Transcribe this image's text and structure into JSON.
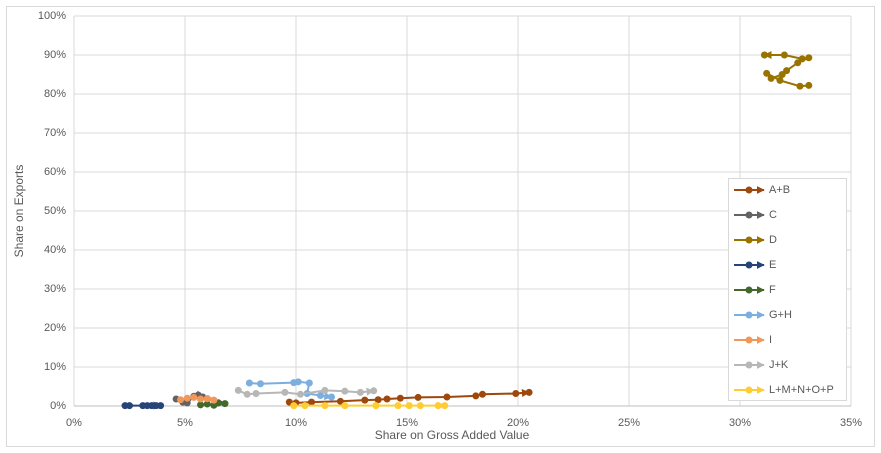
{
  "chart_data": {
    "type": "scatter",
    "x_label": "Share on Gross Added Value",
    "y_label": "Share on Exports",
    "xlim": [
      0,
      35
    ],
    "ylim": [
      0,
      100
    ],
    "xticks": [
      {
        "value": 0,
        "label": "0%"
      },
      {
        "value": 5,
        "label": "5%"
      },
      {
        "value": 10,
        "label": "10%"
      },
      {
        "value": 15,
        "label": "15%"
      },
      {
        "value": 20,
        "label": "20%"
      },
      {
        "value": 25,
        "label": "25%"
      },
      {
        "value": 30,
        "label": "30%"
      },
      {
        "value": 35,
        "label": "35%"
      }
    ],
    "yticks": [
      {
        "value": 0,
        "label": "0%"
      },
      {
        "value": 10,
        "label": "10%"
      },
      {
        "value": 20,
        "label": "20%"
      },
      {
        "value": 30,
        "label": "30%"
      },
      {
        "value": 40,
        "label": "40%"
      },
      {
        "value": 50,
        "label": "50%"
      },
      {
        "value": 60,
        "label": "60%"
      },
      {
        "value": 70,
        "label": "70%"
      },
      {
        "value": 80,
        "label": "80%"
      },
      {
        "value": 90,
        "label": "90%"
      },
      {
        "value": 100,
        "label": "100%"
      }
    ],
    "grid": true,
    "legend": "right",
    "series": [
      {
        "name": "A+B",
        "color": "#9e480e",
        "x": [
          9.7,
          10.0,
          10.7,
          12.0,
          13.1,
          13.7,
          14.1,
          14.7,
          15.5,
          16.8,
          18.1,
          18.4,
          19.9,
          20.5
        ],
        "values": [
          1.0,
          0.8,
          1.0,
          1.2,
          1.5,
          1.6,
          1.8,
          2.0,
          2.2,
          2.3,
          2.6,
          3.0,
          3.2,
          3.5
        ]
      },
      {
        "name": "C",
        "color": "#636363",
        "x": [
          4.6,
          4.9,
          5.1,
          5.4,
          5.6,
          5.8
        ],
        "values": [
          1.8,
          1.0,
          0.8,
          2.5,
          2.8,
          2.3
        ]
      },
      {
        "name": "D",
        "color": "#997300",
        "x": [
          33.1,
          32.7,
          31.8,
          31.2,
          31.4,
          31.9,
          32.1,
          32.6,
          33.1,
          32.8,
          32.0,
          31.1
        ],
        "values": [
          82.2,
          82.0,
          83.5,
          85.3,
          84.0,
          85.0,
          86.0,
          88.0,
          89.3,
          89.0,
          90.0,
          90.0
        ]
      },
      {
        "name": "E",
        "color": "#264478",
        "x": [
          2.3,
          2.5,
          3.1,
          3.3,
          3.5,
          3.7,
          3.9
        ],
        "values": [
          0.1,
          0.1,
          0.1,
          0.1,
          0.1,
          0.1,
          0.1
        ]
      },
      {
        "name": "F",
        "color": "#43682b",
        "x": [
          5.7,
          6.0,
          6.3,
          6.5,
          6.8
        ],
        "values": [
          0.3,
          0.5,
          0.2,
          0.8,
          0.6
        ]
      },
      {
        "name": "G+H",
        "color": "#7cafdd",
        "x": [
          7.9,
          8.4,
          9.9,
          10.1,
          10.6,
          10.5,
          11.1,
          11.6
        ],
        "values": [
          5.9,
          5.7,
          6.0,
          6.2,
          5.9,
          3.2,
          2.7,
          2.3
        ]
      },
      {
        "name": "I",
        "color": "#f1975a",
        "x": [
          4.8,
          5.1,
          5.4,
          5.7,
          6.0,
          6.3
        ],
        "values": [
          1.6,
          2.0,
          2.2,
          1.8,
          1.9,
          1.5
        ]
      },
      {
        "name": "J+K",
        "color": "#b7b7b7",
        "x": [
          7.4,
          7.8,
          8.2,
          9.5,
          10.2,
          11.3,
          12.2,
          12.9,
          13.5
        ],
        "values": [
          4.0,
          3.0,
          3.2,
          3.5,
          3.0,
          4.0,
          3.8,
          3.5,
          3.9
        ]
      },
      {
        "name": "L+M+N+O+P",
        "color": "#ffcd33",
        "x": [
          9.9,
          10.4,
          11.3,
          12.2,
          13.6,
          14.6,
          15.1,
          15.6,
          16.4,
          16.7
        ],
        "values": [
          0.1,
          0.1,
          0.1,
          0.1,
          0.1,
          0.1,
          0.1,
          0.1,
          0.1,
          0.1
        ]
      }
    ]
  }
}
